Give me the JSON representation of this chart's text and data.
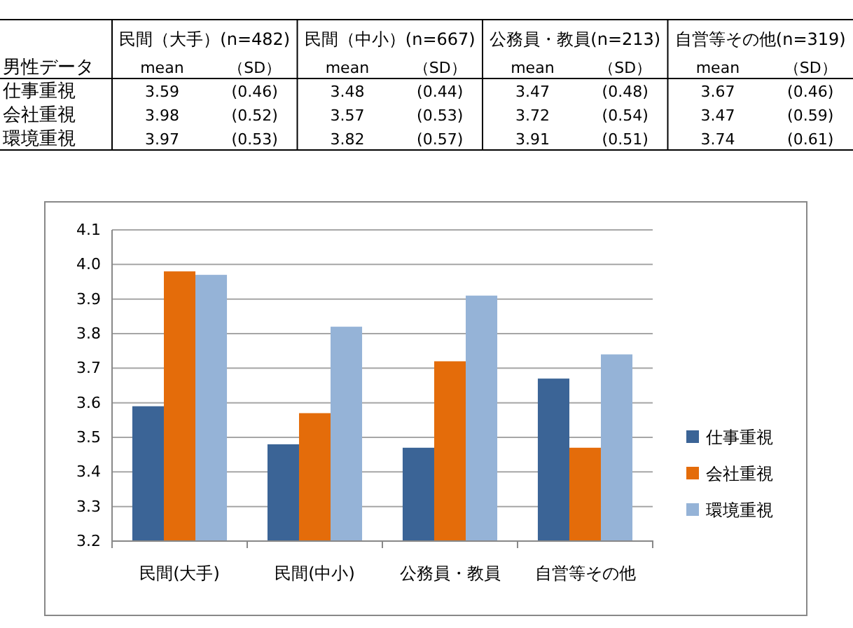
{
  "chart_data": {
    "type": "bar",
    "categories": [
      "民間(大手)",
      "民間(中小)",
      "公務員・教員",
      "自営等その他"
    ],
    "series": [
      {
        "name": "仕事重視",
        "color": "#3b6496",
        "values": [
          3.59,
          3.48,
          3.47,
          3.67
        ]
      },
      {
        "name": "会社重視",
        "color": "#e46c0a",
        "values": [
          3.98,
          3.57,
          3.72,
          3.47
        ]
      },
      {
        "name": "環境重視",
        "color": "#95b3d7",
        "values": [
          3.97,
          3.82,
          3.91,
          3.74
        ]
      }
    ],
    "ylim": [
      3.2,
      4.1
    ],
    "yticks": [
      {
        "value": 3.2,
        "label": "3.2"
      },
      {
        "value": 3.3,
        "label": "3.3"
      },
      {
        "value": 3.4,
        "label": "3.4"
      },
      {
        "value": 3.5,
        "label": "3.5"
      },
      {
        "value": 3.6,
        "label": "3.6"
      },
      {
        "value": 3.7,
        "label": "3.7"
      },
      {
        "value": 3.8,
        "label": "3.8"
      },
      {
        "value": 3.9,
        "label": "3.9"
      },
      {
        "value": 4.0,
        "label": "4.0"
      },
      {
        "value": 4.1,
        "label": "4.1"
      }
    ],
    "grid": "y",
    "legend": "right",
    "annotations": [
      "男性データ",
      "mean",
      "（SD）",
      "民間（大手）(n=482)",
      "民間（中小）(n=667)",
      "公務員・教員(n=213)",
      "自営等その他(n=319)",
      "3.59",
      "(0.46)",
      "3.48",
      "(0.44)",
      "3.47",
      "(0.48)",
      "3.67",
      "(0.46)",
      "3.98",
      "(0.52)",
      "3.57",
      "(0.53)",
      "3.72",
      "(0.54)",
      "3.47",
      "(0.59)",
      "3.97",
      "(0.53)",
      "3.82",
      "(0.57)",
      "3.91",
      "(0.51)",
      "3.74",
      "(0.61)"
    ]
  }
}
